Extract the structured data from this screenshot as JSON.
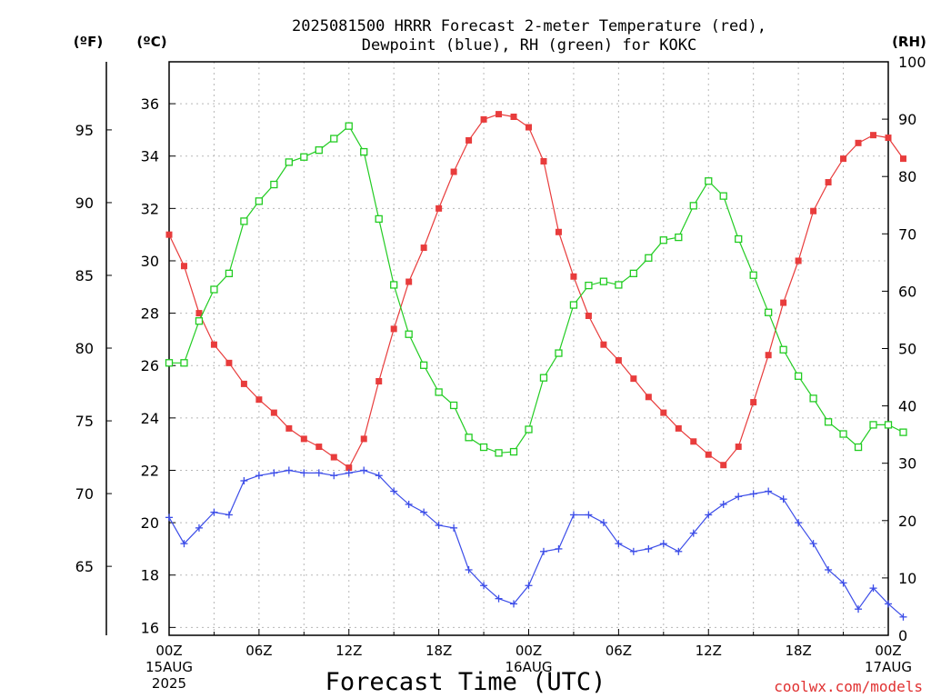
{
  "chart_data": {
    "type": "line",
    "title_line1": "2025081500 HRRR Forecast 2-meter Temperature (red),",
    "title_line2": "Dewpoint (blue), RH (green) for KOKC",
    "units": {
      "fahrenheit": "(ºF)",
      "celsius": "(ºC)",
      "rh": "(RH)"
    },
    "xlabel": "Forecast Time (UTC)",
    "credit": "coolwx.com/models",
    "x_ticks": [
      {
        "h": 0,
        "lines": [
          "00Z",
          "15AUG",
          "2025"
        ]
      },
      {
        "h": 6,
        "lines": [
          "06Z"
        ]
      },
      {
        "h": 12,
        "lines": [
          "12Z"
        ]
      },
      {
        "h": 18,
        "lines": [
          "18Z"
        ]
      },
      {
        "h": 24,
        "lines": [
          "00Z",
          "16AUG"
        ]
      },
      {
        "h": 30,
        "lines": [
          "06Z"
        ]
      },
      {
        "h": 36,
        "lines": [
          "12Z"
        ]
      },
      {
        "h": 42,
        "lines": [
          "18Z"
        ]
      },
      {
        "h": 48,
        "lines": [
          "00Z",
          "17AUG"
        ]
      }
    ],
    "xlim": [
      0,
      48
    ],
    "ylim_c": [
      15.7,
      37.6
    ],
    "ylim_rh": [
      0,
      100
    ],
    "yticks_c": [
      16,
      18,
      20,
      22,
      24,
      26,
      28,
      30,
      32,
      34,
      36
    ],
    "yticks_f": [
      65,
      70,
      75,
      80,
      85,
      90,
      95
    ],
    "yticks_rh": [
      0,
      10,
      20,
      30,
      40,
      50,
      60,
      70,
      80,
      90,
      100
    ],
    "grid": true,
    "series": [
      {
        "name": "Temperature",
        "axis": "celsius",
        "color": "#e83c3c",
        "marker": "filled-square",
        "values": [
          31.0,
          29.8,
          28.0,
          26.8,
          26.1,
          25.3,
          24.7,
          24.2,
          23.6,
          23.2,
          22.9,
          22.5,
          22.1,
          23.2,
          25.4,
          27.4,
          29.2,
          30.5,
          32.0,
          33.4,
          34.6,
          35.4,
          35.6,
          35.5,
          35.1,
          33.8,
          31.1,
          29.4,
          27.9,
          26.8,
          26.2,
          25.5,
          24.8,
          24.2,
          23.6,
          23.1,
          22.6,
          22.2,
          22.9,
          24.6,
          26.4,
          28.4,
          30.0,
          31.9,
          33.0,
          33.9,
          34.5,
          34.8,
          34.7,
          33.9
        ]
      },
      {
        "name": "Dewpoint",
        "axis": "celsius",
        "color": "#3c4de8",
        "marker": "plus",
        "values": [
          20.2,
          19.2,
          19.8,
          20.4,
          20.3,
          21.6,
          21.8,
          21.9,
          22.0,
          21.9,
          21.9,
          21.8,
          21.9,
          22.0,
          21.8,
          21.2,
          20.7,
          20.4,
          19.9,
          19.8,
          18.2,
          17.6,
          17.1,
          16.9,
          17.6,
          18.9,
          19.0,
          20.3,
          20.3,
          20.0,
          19.2,
          18.9,
          19.0,
          19.2,
          18.9,
          19.6,
          20.3,
          20.7,
          21.0,
          21.1,
          21.2,
          20.9,
          20.0,
          19.2,
          18.2,
          17.7,
          16.7,
          17.5,
          16.9,
          16.4
        ]
      },
      {
        "name": "RH",
        "axis": "rh",
        "color": "#22cc22",
        "marker": "open-square",
        "values": [
          47.5,
          47.5,
          54.8,
          60.3,
          63.1,
          72.2,
          75.7,
          78.6,
          82.5,
          83.4,
          84.6,
          86.6,
          88.8,
          84.3,
          72.6,
          61.1,
          52.5,
          47.1,
          42.4,
          40.1,
          34.5,
          32.8,
          31.8,
          32.0,
          35.9,
          44.9,
          49.2,
          57.6,
          61.0,
          61.7,
          61.1,
          63.1,
          65.8,
          68.9,
          69.4,
          74.9,
          79.2,
          76.6,
          69.1,
          62.8,
          56.3,
          49.8,
          45.2,
          41.3,
          37.2,
          35.1,
          32.8,
          36.7,
          36.7,
          35.4
        ]
      }
    ]
  }
}
